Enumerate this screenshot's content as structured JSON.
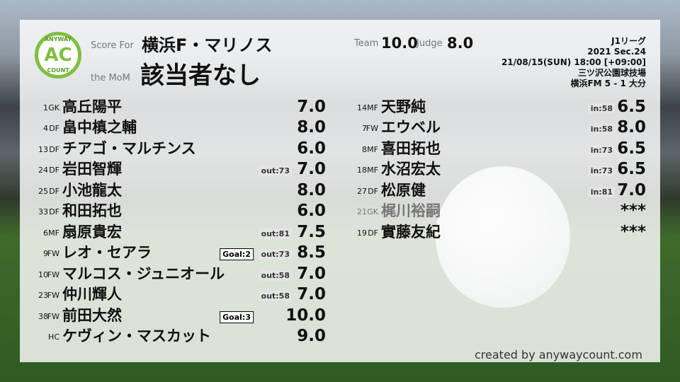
{
  "header": {
    "logo": {
      "top": "ANYWAY",
      "middle": "AC",
      "bottom": "COUNT"
    },
    "score_for_label": "Score For",
    "team": "横浜F・マリノス",
    "mom_label": "the MoM",
    "mom": "該当者なし",
    "team_label": "Team",
    "team_score": "10.0",
    "judge_label": "Judge",
    "judge_score": "8.0",
    "match": [
      "J1リーグ",
      "2021 Sec.24",
      "21/08/15(SUN) 18:00 [+09:00]",
      "三ツ沢公園球技場",
      "横浜FM 5 - 1 大分"
    ]
  },
  "starters": [
    {
      "number": "1",
      "pos": "GK",
      "name": "高丘陽平",
      "score": "7.0"
    },
    {
      "number": "4",
      "pos": "DF",
      "name": "畠中槙之輔",
      "score": "8.0"
    },
    {
      "number": "13",
      "pos": "DF",
      "name": "チアゴ・マルチンス",
      "score": "6.0"
    },
    {
      "number": "24",
      "pos": "DF",
      "name": "岩田智輝",
      "sub": "out:73",
      "score": "7.0"
    },
    {
      "number": "25",
      "pos": "DF",
      "name": "小池龍太",
      "score": "8.0"
    },
    {
      "number": "33",
      "pos": "DF",
      "name": "和田拓也",
      "score": "6.0"
    },
    {
      "number": "6",
      "pos": "MF",
      "name": "扇原貴宏",
      "sub": "out:81",
      "score": "7.5"
    },
    {
      "number": "9",
      "pos": "FW",
      "name": "レオ・セアラ",
      "goal": "Goal:2",
      "sub": "out:73",
      "score": "8.5"
    },
    {
      "number": "10",
      "pos": "FW",
      "name": "マルコス・ジュニオール",
      "sub": "out:58",
      "score": "7.0"
    },
    {
      "number": "23",
      "pos": "FW",
      "name": "仲川輝人",
      "sub": "out:58",
      "score": "7.0"
    },
    {
      "number": "38",
      "pos": "FW",
      "name": "前田大然",
      "goal": "Goal:3",
      "score": "10.0"
    },
    {
      "pos": "HC",
      "name": "ケヴィン・マスカット",
      "score": "9.0"
    }
  ],
  "substitutes": [
    {
      "number": "14",
      "pos": "MF",
      "name": "天野純",
      "sub": "in:58",
      "score": "6.5"
    },
    {
      "number": "7",
      "pos": "FW",
      "name": "エウベル",
      "sub": "in:58",
      "score": "8.0"
    },
    {
      "number": "8",
      "pos": "MF",
      "name": "喜田拓也",
      "sub": "in:73",
      "score": "6.5"
    },
    {
      "number": "18",
      "pos": "MF",
      "name": "水沼宏太",
      "sub": "in:73",
      "score": "6.5"
    },
    {
      "number": "27",
      "pos": "DF",
      "name": "松原健",
      "sub": "in:81",
      "score": "7.0"
    },
    {
      "number": "21",
      "pos": "GK",
      "name": "梶川裕嗣",
      "score": "***"
    },
    {
      "number": "19",
      "pos": "DF",
      "name": "實藤友紀",
      "score": "***"
    }
  ],
  "footer": "created by anywaycount.com"
}
